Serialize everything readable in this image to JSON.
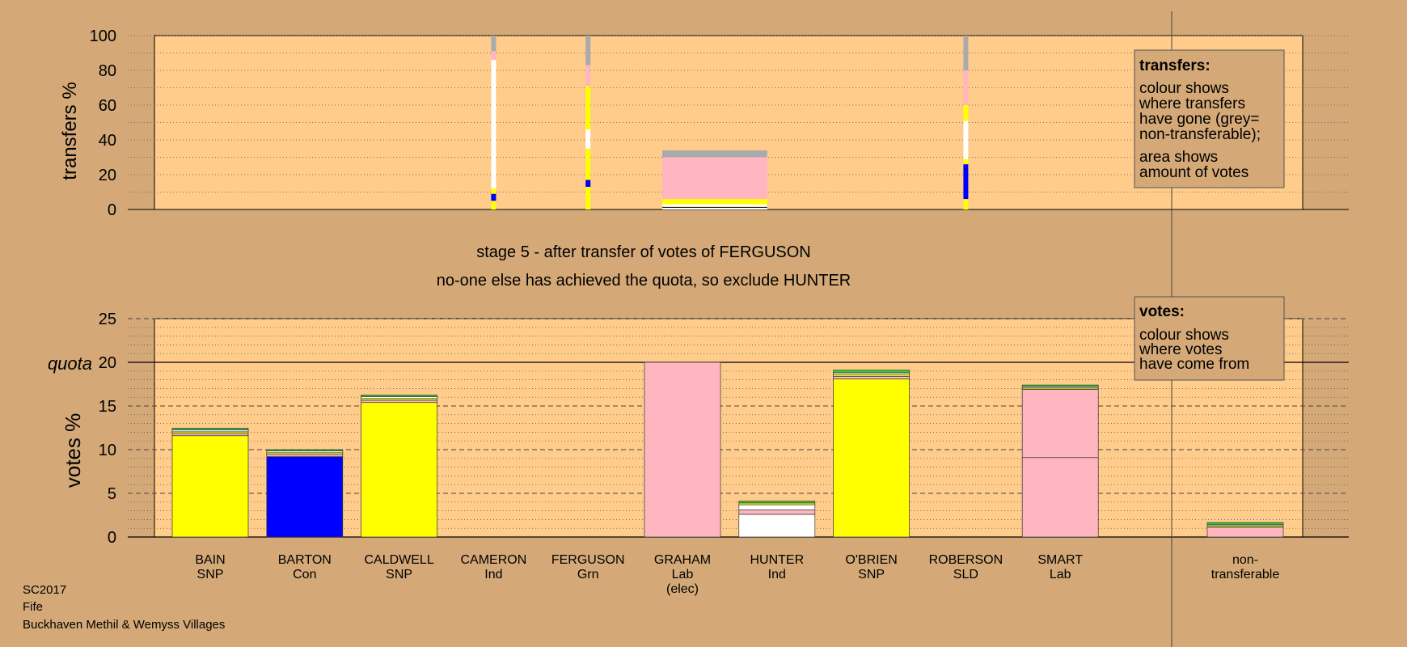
{
  "chart_data": [
    {
      "type": "bar",
      "id": "transfers",
      "ylabel": "transfers %",
      "ylim": [
        0,
        100
      ],
      "yticks": [
        0,
        20,
        40,
        60,
        80,
        100
      ],
      "legend": {
        "title": "transfers:",
        "lines": [
          "colour shows",
          "where transfers",
          "have gone (grey=",
          "non-transferable);"
        ],
        "lines2": [
          "area shows",
          "amount of votes"
        ]
      },
      "thin_bars": [
        {
          "candidate": "CAMERON",
          "segments": [
            {
              "from": 0,
              "to": 5,
              "color": "#ffff00"
            },
            {
              "from": 5,
              "to": 9,
              "color": "#0000ff"
            },
            {
              "from": 9,
              "to": 12,
              "color": "#ffff00"
            },
            {
              "from": 12,
              "to": 86,
              "color": "#ffffff"
            },
            {
              "from": 86,
              "to": 91,
              "color": "#ffb6c1"
            },
            {
              "from": 91,
              "to": 100,
              "color": "#aaaaaa"
            }
          ]
        },
        {
          "candidate": "FERGUSON",
          "segments": [
            {
              "from": 0,
              "to": 13,
              "color": "#ffff00"
            },
            {
              "from": 13,
              "to": 17,
              "color": "#0000ff"
            },
            {
              "from": 17,
              "to": 35,
              "color": "#ffff00"
            },
            {
              "from": 35,
              "to": 46,
              "color": "#ffffff"
            },
            {
              "from": 46,
              "to": 71,
              "color": "#ffff00"
            },
            {
              "from": 71,
              "to": 83,
              "color": "#ffb6c1"
            },
            {
              "from": 83,
              "to": 100,
              "color": "#aaaaaa"
            }
          ]
        },
        {
          "candidate": "ROBERSON",
          "segments": [
            {
              "from": 0,
              "to": 6,
              "color": "#ffff00"
            },
            {
              "from": 6,
              "to": 26,
              "color": "#0000ff"
            },
            {
              "from": 26,
              "to": 29,
              "color": "#ffff00"
            },
            {
              "from": 29,
              "to": 51,
              "color": "#ffffff"
            },
            {
              "from": 51,
              "to": 60,
              "color": "#ffff00"
            },
            {
              "from": 60,
              "to": 80,
              "color": "#ffb6c1"
            },
            {
              "from": 80,
              "to": 100,
              "color": "#aaaaaa"
            }
          ]
        }
      ],
      "block": {
        "x_from": "GRAHAM",
        "x_to": "HUNTER",
        "segments": [
          {
            "from": 0,
            "to": 1,
            "color": "#ffffff"
          },
          {
            "from": 1,
            "to": 1.5,
            "color": "#000000"
          },
          {
            "from": 1.5,
            "to": 3,
            "color": "#ffffff"
          },
          {
            "from": 3,
            "to": 6,
            "color": "#ffff00"
          },
          {
            "from": 6,
            "to": 30,
            "color": "#ffb6c1"
          },
          {
            "from": 30,
            "to": 34,
            "color": "#aaaaaa"
          }
        ]
      }
    },
    {
      "type": "bar",
      "id": "votes",
      "ylabel": "votes %",
      "ylim": [
        0,
        25
      ],
      "yticks": [
        0,
        5,
        10,
        15,
        20,
        25
      ],
      "quota": 20,
      "quota_label": "quota",
      "legend": {
        "title": "votes:",
        "lines": [
          "colour shows",
          "where votes",
          "have come from"
        ]
      },
      "categories": [
        {
          "name": "BAIN",
          "party": "SNP",
          "extra": ""
        },
        {
          "name": "BARTON",
          "party": "Con",
          "extra": ""
        },
        {
          "name": "CALDWELL",
          "party": "SNP",
          "extra": ""
        },
        {
          "name": "CAMERON",
          "party": "Ind",
          "extra": ""
        },
        {
          "name": "FERGUSON",
          "party": "Grn",
          "extra": ""
        },
        {
          "name": "GRAHAM",
          "party": "Lab",
          "extra": "(elec)"
        },
        {
          "name": "HUNTER",
          "party": "Ind",
          "extra": ""
        },
        {
          "name": "O'BRIEN",
          "party": "SNP",
          "extra": ""
        },
        {
          "name": "ROBERSON",
          "party": "SLD",
          "extra": ""
        },
        {
          "name": "SMART",
          "party": "Lab",
          "extra": ""
        }
      ],
      "stacks": [
        [
          {
            "v": 11.6,
            "c": "#ffff00"
          },
          {
            "v": 0.25,
            "c": "#ffb6c1"
          },
          {
            "v": 0.2,
            "c": "#ffff00"
          },
          {
            "v": 0.2,
            "c": "#ffffff"
          },
          {
            "v": 0.2,
            "c": "#32cd32"
          }
        ],
        [
          {
            "v": 9.2,
            "c": "#0000ff"
          },
          {
            "v": 0.25,
            "c": "#ffb6c1"
          },
          {
            "v": 0.2,
            "c": "#ffff00"
          },
          {
            "v": 0.2,
            "c": "#ffffff"
          },
          {
            "v": 0.15,
            "c": "#32cd32"
          }
        ],
        [
          {
            "v": 15.4,
            "c": "#ffff00"
          },
          {
            "v": 0.25,
            "c": "#ffb6c1"
          },
          {
            "v": 0.2,
            "c": "#ffff00"
          },
          {
            "v": 0.2,
            "c": "#ffffff"
          },
          {
            "v": 0.2,
            "c": "#32cd32"
          }
        ],
        [],
        [],
        [
          {
            "v": 20.0,
            "c": "#ffb6c1"
          }
        ],
        [
          {
            "v": 2.6,
            "c": "#ffffff"
          },
          {
            "v": 0.5,
            "c": "#ffb6c1"
          },
          {
            "v": 0.6,
            "c": "#ffffff"
          },
          {
            "v": 0.2,
            "c": "#ffff00"
          },
          {
            "v": 0.2,
            "c": "#32cd32"
          }
        ],
        [
          {
            "v": 18.1,
            "c": "#ffff00"
          },
          {
            "v": 0.3,
            "c": "#ffb6c1"
          },
          {
            "v": 0.2,
            "c": "#ffff00"
          },
          {
            "v": 0.2,
            "c": "#ffffff"
          },
          {
            "v": 0.3,
            "c": "#32cd32"
          }
        ],
        [],
        [
          {
            "v": 9.1,
            "c": "#ffb6c1"
          },
          {
            "v": 7.8,
            "c": "#ffb6c1"
          },
          {
            "v": 0.15,
            "c": "#ffff00"
          },
          {
            "v": 0.15,
            "c": "#ffffff"
          },
          {
            "v": 0.2,
            "c": "#32cd32"
          }
        ]
      ],
      "nontransferable": {
        "label_lines": [
          "non-",
          "transferable"
        ],
        "stack": [
          {
            "v": 1.1,
            "c": "#ffb6c1"
          },
          {
            "v": 0.15,
            "c": "#ffff00"
          },
          {
            "v": 0.15,
            "c": "#ffffff"
          },
          {
            "v": 0.25,
            "c": "#32cd32"
          }
        ]
      }
    }
  ],
  "stage_title": "stage 5 - after transfer of votes of FERGUSON",
  "stage_subtitle": "no-one else has achieved the quota, so exclude HUNTER",
  "footer": [
    "SC2017",
    "Fife",
    "Buckhaven Methil & Wemyss Villages"
  ],
  "colors": {
    "background": "#d4a977",
    "panel": "#ffcc8b",
    "snp": "#ffff00",
    "con": "#0000ff",
    "lab": "#ffb6c1",
    "ind": "#ffffff",
    "grn": "#32cd32",
    "nontransferable": "#aaaaaa"
  }
}
